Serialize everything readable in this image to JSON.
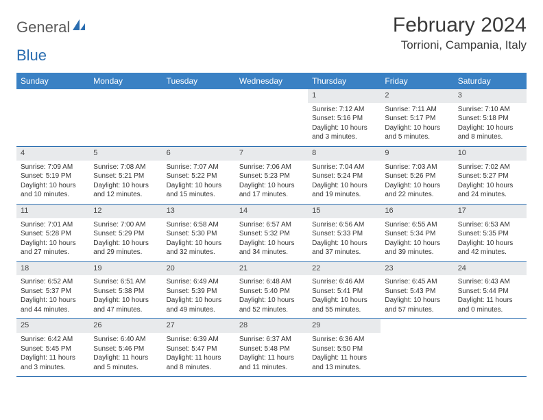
{
  "header": {
    "logo_word1": "General",
    "logo_word2": "Blue",
    "month_title": "February 2024",
    "location": "Torrioni, Campania, Italy"
  },
  "styling": {
    "header_bar_color": "#3a81c4",
    "week_divider_color": "#2a6db0",
    "day_number_bg": "#e8eaec",
    "page_bg": "#ffffff",
    "text_color": "#333333",
    "title_color": "#3a3a3a",
    "logo_gray": "#5a5a5a",
    "logo_blue": "#2a6db0",
    "body_fontsize": 10,
    "daynum_fontsize": 11,
    "header_fontsize": 12,
    "title_fontsize": 30,
    "location_fontsize": 17
  },
  "day_names": [
    "Sunday",
    "Monday",
    "Tuesday",
    "Wednesday",
    "Thursday",
    "Friday",
    "Saturday"
  ],
  "weeks": [
    [
      {
        "empty": true
      },
      {
        "empty": true
      },
      {
        "empty": true
      },
      {
        "empty": true
      },
      {
        "num": "1",
        "sunrise": "Sunrise: 7:12 AM",
        "sunset": "Sunset: 5:16 PM",
        "daylight": "Daylight: 10 hours and 3 minutes."
      },
      {
        "num": "2",
        "sunrise": "Sunrise: 7:11 AM",
        "sunset": "Sunset: 5:17 PM",
        "daylight": "Daylight: 10 hours and 5 minutes."
      },
      {
        "num": "3",
        "sunrise": "Sunrise: 7:10 AM",
        "sunset": "Sunset: 5:18 PM",
        "daylight": "Daylight: 10 hours and 8 minutes."
      }
    ],
    [
      {
        "num": "4",
        "sunrise": "Sunrise: 7:09 AM",
        "sunset": "Sunset: 5:19 PM",
        "daylight": "Daylight: 10 hours and 10 minutes."
      },
      {
        "num": "5",
        "sunrise": "Sunrise: 7:08 AM",
        "sunset": "Sunset: 5:21 PM",
        "daylight": "Daylight: 10 hours and 12 minutes."
      },
      {
        "num": "6",
        "sunrise": "Sunrise: 7:07 AM",
        "sunset": "Sunset: 5:22 PM",
        "daylight": "Daylight: 10 hours and 15 minutes."
      },
      {
        "num": "7",
        "sunrise": "Sunrise: 7:06 AM",
        "sunset": "Sunset: 5:23 PM",
        "daylight": "Daylight: 10 hours and 17 minutes."
      },
      {
        "num": "8",
        "sunrise": "Sunrise: 7:04 AM",
        "sunset": "Sunset: 5:24 PM",
        "daylight": "Daylight: 10 hours and 19 minutes."
      },
      {
        "num": "9",
        "sunrise": "Sunrise: 7:03 AM",
        "sunset": "Sunset: 5:26 PM",
        "daylight": "Daylight: 10 hours and 22 minutes."
      },
      {
        "num": "10",
        "sunrise": "Sunrise: 7:02 AM",
        "sunset": "Sunset: 5:27 PM",
        "daylight": "Daylight: 10 hours and 24 minutes."
      }
    ],
    [
      {
        "num": "11",
        "sunrise": "Sunrise: 7:01 AM",
        "sunset": "Sunset: 5:28 PM",
        "daylight": "Daylight: 10 hours and 27 minutes."
      },
      {
        "num": "12",
        "sunrise": "Sunrise: 7:00 AM",
        "sunset": "Sunset: 5:29 PM",
        "daylight": "Daylight: 10 hours and 29 minutes."
      },
      {
        "num": "13",
        "sunrise": "Sunrise: 6:58 AM",
        "sunset": "Sunset: 5:30 PM",
        "daylight": "Daylight: 10 hours and 32 minutes."
      },
      {
        "num": "14",
        "sunrise": "Sunrise: 6:57 AM",
        "sunset": "Sunset: 5:32 PM",
        "daylight": "Daylight: 10 hours and 34 minutes."
      },
      {
        "num": "15",
        "sunrise": "Sunrise: 6:56 AM",
        "sunset": "Sunset: 5:33 PM",
        "daylight": "Daylight: 10 hours and 37 minutes."
      },
      {
        "num": "16",
        "sunrise": "Sunrise: 6:55 AM",
        "sunset": "Sunset: 5:34 PM",
        "daylight": "Daylight: 10 hours and 39 minutes."
      },
      {
        "num": "17",
        "sunrise": "Sunrise: 6:53 AM",
        "sunset": "Sunset: 5:35 PM",
        "daylight": "Daylight: 10 hours and 42 minutes."
      }
    ],
    [
      {
        "num": "18",
        "sunrise": "Sunrise: 6:52 AM",
        "sunset": "Sunset: 5:37 PM",
        "daylight": "Daylight: 10 hours and 44 minutes."
      },
      {
        "num": "19",
        "sunrise": "Sunrise: 6:51 AM",
        "sunset": "Sunset: 5:38 PM",
        "daylight": "Daylight: 10 hours and 47 minutes."
      },
      {
        "num": "20",
        "sunrise": "Sunrise: 6:49 AM",
        "sunset": "Sunset: 5:39 PM",
        "daylight": "Daylight: 10 hours and 49 minutes."
      },
      {
        "num": "21",
        "sunrise": "Sunrise: 6:48 AM",
        "sunset": "Sunset: 5:40 PM",
        "daylight": "Daylight: 10 hours and 52 minutes."
      },
      {
        "num": "22",
        "sunrise": "Sunrise: 6:46 AM",
        "sunset": "Sunset: 5:41 PM",
        "daylight": "Daylight: 10 hours and 55 minutes."
      },
      {
        "num": "23",
        "sunrise": "Sunrise: 6:45 AM",
        "sunset": "Sunset: 5:43 PM",
        "daylight": "Daylight: 10 hours and 57 minutes."
      },
      {
        "num": "24",
        "sunrise": "Sunrise: 6:43 AM",
        "sunset": "Sunset: 5:44 PM",
        "daylight": "Daylight: 11 hours and 0 minutes."
      }
    ],
    [
      {
        "num": "25",
        "sunrise": "Sunrise: 6:42 AM",
        "sunset": "Sunset: 5:45 PM",
        "daylight": "Daylight: 11 hours and 3 minutes."
      },
      {
        "num": "26",
        "sunrise": "Sunrise: 6:40 AM",
        "sunset": "Sunset: 5:46 PM",
        "daylight": "Daylight: 11 hours and 5 minutes."
      },
      {
        "num": "27",
        "sunrise": "Sunrise: 6:39 AM",
        "sunset": "Sunset: 5:47 PM",
        "daylight": "Daylight: 11 hours and 8 minutes."
      },
      {
        "num": "28",
        "sunrise": "Sunrise: 6:37 AM",
        "sunset": "Sunset: 5:48 PM",
        "daylight": "Daylight: 11 hours and 11 minutes."
      },
      {
        "num": "29",
        "sunrise": "Sunrise: 6:36 AM",
        "sunset": "Sunset: 5:50 PM",
        "daylight": "Daylight: 11 hours and 13 minutes."
      },
      {
        "empty": true
      },
      {
        "empty": true
      }
    ]
  ]
}
